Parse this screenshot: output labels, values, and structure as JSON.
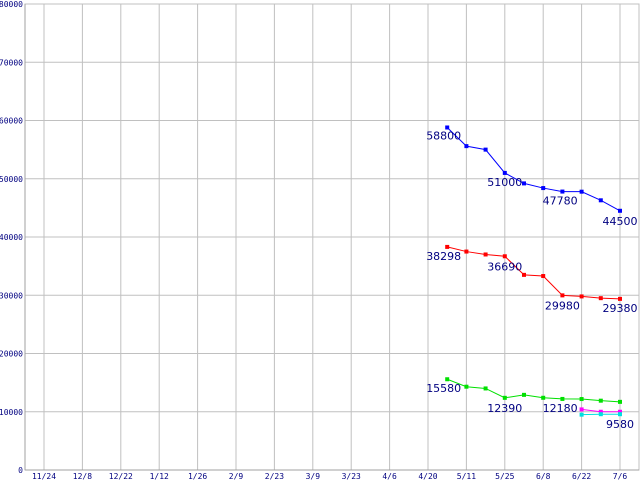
{
  "chart_data": {
    "type": "line",
    "title": "",
    "xlabel": "",
    "ylabel": "",
    "ylim": [
      0,
      80000
    ],
    "yticks": [
      0,
      10000,
      20000,
      30000,
      40000,
      50000,
      60000,
      70000,
      80000
    ],
    "x_unit": "week index (each tick = 2 weeks)",
    "xticks": [
      {
        "week": 0,
        "label": "11/24"
      },
      {
        "week": 2,
        "label": "12/8"
      },
      {
        "week": 4,
        "label": "12/22"
      },
      {
        "week": 6,
        "label": "1/12"
      },
      {
        "week": 8,
        "label": "1/26"
      },
      {
        "week": 10,
        "label": "2/9"
      },
      {
        "week": 12,
        "label": "2/23"
      },
      {
        "week": 14,
        "label": "3/9"
      },
      {
        "week": 16,
        "label": "3/23"
      },
      {
        "week": 18,
        "label": "4/6"
      },
      {
        "week": 20,
        "label": "4/20"
      },
      {
        "week": 22,
        "label": "5/11"
      },
      {
        "week": 24,
        "label": "5/25"
      },
      {
        "week": 26,
        "label": "6/8"
      },
      {
        "week": 28,
        "label": "6/22"
      },
      {
        "week": 30,
        "label": "7/6"
      }
    ],
    "grid": true,
    "series": [
      {
        "name": "blue",
        "color": "#0000ff",
        "x": [
          21,
          22,
          23,
          24,
          25,
          26,
          27,
          28,
          29,
          30
        ],
        "values": [
          58800,
          55600,
          55000,
          51000,
          49200,
          48400,
          47800,
          47780,
          46300,
          44500
        ]
      },
      {
        "name": "red",
        "color": "#ff0000",
        "x": [
          21,
          22,
          23,
          24,
          25,
          26,
          27,
          28,
          29,
          30
        ],
        "values": [
          38298,
          37500,
          37000,
          36690,
          33500,
          33300,
          29980,
          29800,
          29500,
          29380
        ]
      },
      {
        "name": "green",
        "color": "#00e000",
        "x": [
          21,
          22,
          23,
          24,
          25,
          26,
          27,
          28,
          29,
          30
        ],
        "values": [
          15580,
          14300,
          14000,
          12390,
          12900,
          12400,
          12200,
          12180,
          11900,
          11700
        ]
      },
      {
        "name": "magenta",
        "color": "#ff00ff",
        "x": [
          28,
          29,
          30
        ],
        "values": [
          10400,
          10000,
          10000
        ]
      },
      {
        "name": "cyan",
        "color": "#00e0e0",
        "x": [
          28,
          29,
          30
        ],
        "values": [
          9500,
          9580,
          9580
        ]
      }
    ],
    "annotations": [
      {
        "series": 0,
        "index": 0,
        "text": "58800",
        "anchor": "end",
        "dx": 14,
        "dy": 12
      },
      {
        "series": 0,
        "index": 3,
        "text": "51000",
        "anchor": "middle",
        "dx": 0,
        "dy": 13
      },
      {
        "series": 0,
        "index": 7,
        "text": "47780",
        "anchor": "end",
        "dx": -4,
        "dy": 13
      },
      {
        "series": 0,
        "index": 9,
        "text": "44500",
        "anchor": "middle",
        "dx": 0,
        "dy": 14
      },
      {
        "series": 1,
        "index": 0,
        "text": "38298",
        "anchor": "end",
        "dx": 14,
        "dy": 13
      },
      {
        "series": 1,
        "index": 3,
        "text": "36690",
        "anchor": "middle",
        "dx": 0,
        "dy": 14
      },
      {
        "series": 1,
        "index": 6,
        "text": "29980",
        "anchor": "middle",
        "dx": 0,
        "dy": 14
      },
      {
        "series": 1,
        "index": 9,
        "text": "29380",
        "anchor": "middle",
        "dx": 0,
        "dy": 13
      },
      {
        "series": 2,
        "index": 0,
        "text": "15580",
        "anchor": "end",
        "dx": 14,
        "dy": 13
      },
      {
        "series": 2,
        "index": 3,
        "text": "12390",
        "anchor": "middle",
        "dx": 0,
        "dy": 14
      },
      {
        "series": 2,
        "index": 7,
        "text": "12180",
        "anchor": "end",
        "dx": -4,
        "dy": 13
      },
      {
        "series": 4,
        "index": 2,
        "text": "9580",
        "anchor": "middle",
        "dx": 0,
        "dy": 14
      }
    ]
  }
}
